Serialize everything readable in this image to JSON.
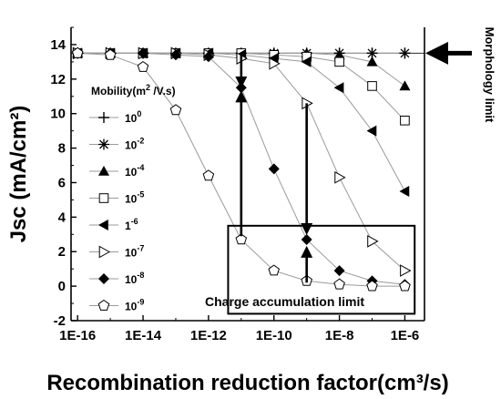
{
  "chart_data": {
    "type": "line",
    "xlabel": "Recombination reduction factor(cm³/s)",
    "ylabel": "Jsc (mA/cm²)",
    "xscale": "log",
    "xlim_log10": [
      -16.2,
      -5.4
    ],
    "ylim": [
      -2,
      15
    ],
    "x_tick_labels": [
      "1E-16",
      "1E-14",
      "1E-12",
      "1E-10",
      "1E-8",
      "1E-6"
    ],
    "x_tick_exponents": [
      -16,
      -14,
      -12,
      -10,
      -8,
      -6
    ],
    "y_ticks": [
      -2,
      0,
      2,
      4,
      6,
      8,
      10,
      12,
      14
    ],
    "legend_title": {
      "main": "Mobility(m",
      "sup": "2",
      "rest": " /V.s)"
    },
    "legend_placement": "left",
    "x_exponents": [
      -16,
      -15,
      -14,
      -13,
      -12,
      -11,
      -10,
      -9,
      -8,
      -7,
      -6
    ],
    "series": [
      {
        "name": "10^0",
        "label_base": "10",
        "label_exp": "0",
        "marker": "plus",
        "values": [
          13.5,
          13.5,
          13.5,
          13.5,
          13.5,
          13.5,
          13.5,
          13.5,
          13.5,
          13.5,
          13.5
        ]
      },
      {
        "name": "10^-2",
        "label_base": "10",
        "label_exp": "-2",
        "marker": "star",
        "values": [
          13.5,
          13.5,
          13.5,
          13.5,
          13.5,
          13.5,
          13.5,
          13.5,
          13.5,
          13.5,
          13.5
        ]
      },
      {
        "name": "10^-4",
        "label_base": "10",
        "label_exp": "-4",
        "marker": "triangle-up",
        "values": [
          13.5,
          13.5,
          13.5,
          13.5,
          13.5,
          13.5,
          13.5,
          13.5,
          13.4,
          13.0,
          11.6
        ]
      },
      {
        "name": "10^-5",
        "label_base": "10",
        "label_exp": "-5",
        "marker": "square-open",
        "values": [
          13.5,
          13.5,
          13.5,
          13.5,
          13.5,
          13.5,
          13.4,
          13.3,
          13.0,
          11.6,
          9.6
        ]
      },
      {
        "name": "1^-6",
        "label_base": "1",
        "label_exp": "-6",
        "marker": "triangle-left",
        "values": [
          13.5,
          13.5,
          13.5,
          13.5,
          13.5,
          13.4,
          13.2,
          13.0,
          11.5,
          9.0,
          5.5
        ]
      },
      {
        "name": "10^-7",
        "label_base": "10",
        "label_exp": "-7",
        "marker": "triangle-right-open",
        "values": [
          13.5,
          13.5,
          13.5,
          13.5,
          13.4,
          13.2,
          12.9,
          10.6,
          6.3,
          2.6,
          0.9
        ]
      },
      {
        "name": "10^-8",
        "label_base": "10",
        "label_exp": "-8",
        "marker": "diamond",
        "values": [
          13.5,
          13.5,
          13.5,
          13.4,
          13.3,
          11.5,
          6.8,
          2.7,
          0.9,
          0.3,
          0.1
        ]
      },
      {
        "name": "10^-9",
        "label_base": "10",
        "label_exp": "-9",
        "marker": "pentagon-open",
        "values": [
          13.5,
          13.4,
          12.7,
          10.2,
          6.4,
          2.7,
          0.9,
          0.3,
          0.1,
          0.0,
          0.0
        ]
      }
    ],
    "annotations": {
      "morphology_limit": "Morphology limit",
      "charge_accumulation_limit": "Charge accumulation limit"
    },
    "morphology_line_value": 13.5,
    "charge_box_x_log10": [
      -11.4,
      -5.7
    ],
    "charge_box_y": [
      -1.6,
      3.5
    ],
    "arrows": [
      {
        "x_log10": -11,
        "from": 13.4,
        "to": 11.6
      },
      {
        "x_log10": -11,
        "from": 2.9,
        "to": 11.2
      },
      {
        "x_log10": -9,
        "from": 10.6,
        "to": 3.1
      },
      {
        "x_log10": -9,
        "from": 0.2,
        "to": 2.2
      }
    ]
  }
}
